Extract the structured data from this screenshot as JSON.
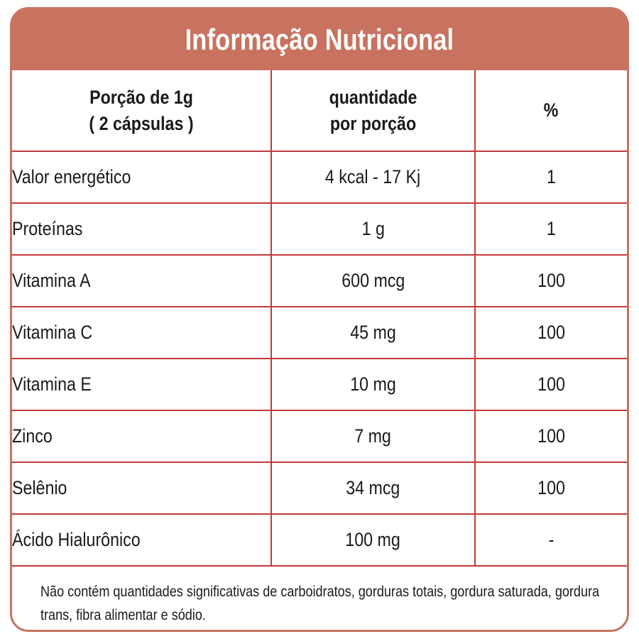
{
  "title": "Informação Nutricional",
  "header": {
    "portion_line1": "Porção de 1g",
    "portion_line2": "( 2 cápsulas )",
    "amount_line1": "quantidade",
    "amount_line2": "por porção",
    "percent": "%"
  },
  "rows": [
    {
      "nutrient": "Valor energético",
      "amount": "4 kcal - 17 Kj",
      "percent": "1"
    },
    {
      "nutrient": "Proteínas",
      "amount": "1 g",
      "percent": "1"
    },
    {
      "nutrient": "Vitamina A",
      "amount": "600 mcg",
      "percent": "100"
    },
    {
      "nutrient": "Vitamina C",
      "amount": "45 mg",
      "percent": "100"
    },
    {
      "nutrient": "Vitamina E",
      "amount": "10 mg",
      "percent": "100"
    },
    {
      "nutrient": "Zinco",
      "amount": "7 mg",
      "percent": "100"
    },
    {
      "nutrient": "Selênio",
      "amount": "34 mcg",
      "percent": "100"
    },
    {
      "nutrient": "Ácido Hialurônico",
      "amount": "100 mg",
      "percent": "-"
    }
  ],
  "footnote": "Não contém quantidades significativas de carboidratos, gorduras totais, gordura saturada, gordura trans, fibra alimentar e sódio.",
  "colors": {
    "accent": "#c8725f",
    "grid_lines": "#c23a3a"
  }
}
